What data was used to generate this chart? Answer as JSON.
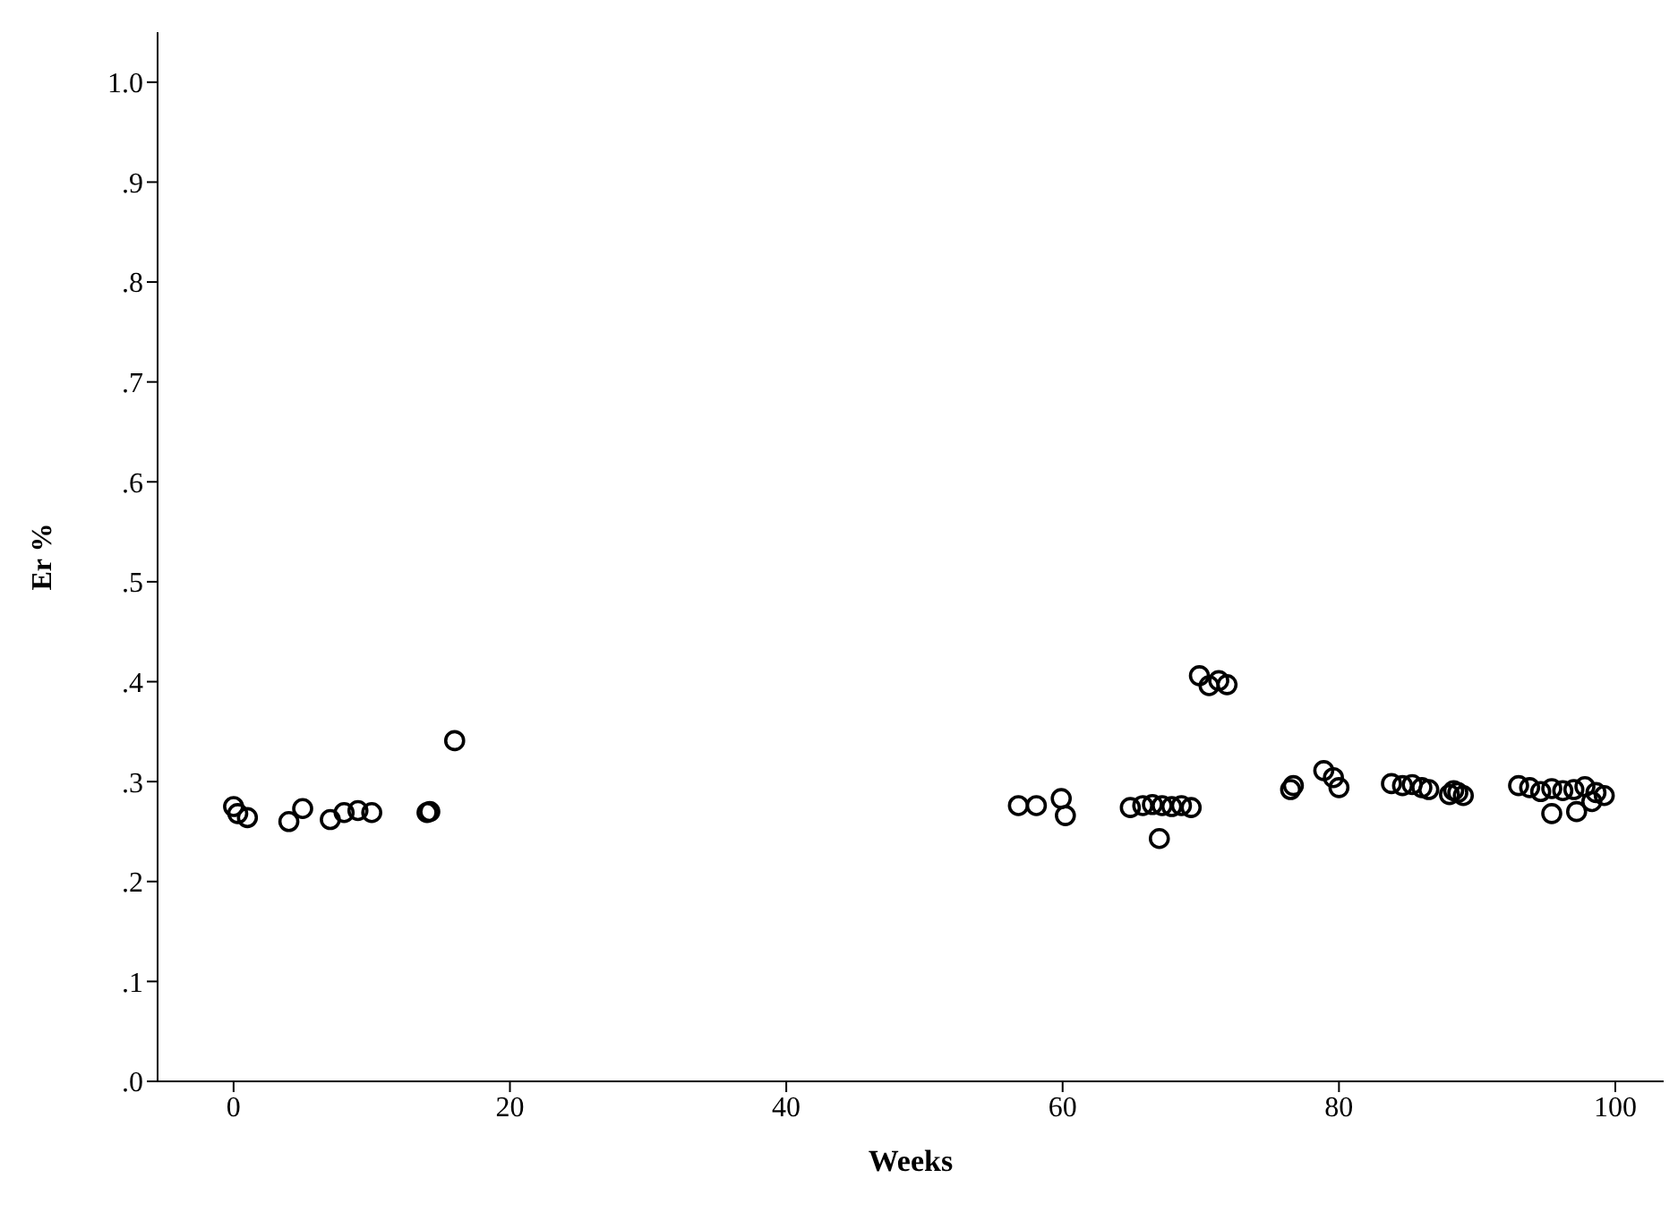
{
  "chart_data": {
    "type": "scatter",
    "xlabel": "Weeks",
    "ylabel": "Er %",
    "x": [
      0,
      0.3,
      1,
      4,
      5,
      7,
      8,
      9,
      10,
      14,
      14.2,
      16,
      56.8,
      58.1,
      59.9,
      60.2,
      64.9,
      65.8,
      66.5,
      67.2,
      67.9,
      68.6,
      69.3,
      67,
      69.9,
      70.6,
      71.3,
      71.9,
      76.5,
      76.7,
      78.9,
      79.6,
      80,
      83.8,
      84.6,
      85.3,
      86,
      86.5,
      88,
      88.3,
      88.6,
      89,
      93,
      93.8,
      94.6,
      95.4,
      96.2,
      97,
      97.8,
      98.6,
      99.2,
      95.4,
      97.2,
      98.3
    ],
    "values": [
      0.275,
      0.268,
      0.264,
      0.26,
      0.273,
      0.262,
      0.269,
      0.271,
      0.269,
      0.269,
      0.27,
      0.341,
      0.276,
      0.276,
      0.283,
      0.266,
      0.274,
      0.276,
      0.277,
      0.276,
      0.275,
      0.276,
      0.274,
      0.243,
      0.406,
      0.396,
      0.401,
      0.397,
      0.292,
      0.296,
      0.311,
      0.304,
      0.294,
      0.298,
      0.296,
      0.297,
      0.294,
      0.292,
      0.287,
      0.291,
      0.289,
      0.286,
      0.296,
      0.294,
      0.29,
      0.293,
      0.291,
      0.292,
      0.295,
      0.289,
      0.286,
      0.268,
      0.27,
      0.28
    ],
    "color": "#000000",
    "marker": "circle",
    "xlim": [
      -5.5,
      103.5
    ],
    "xticks": [
      0,
      20,
      40,
      60,
      80,
      100
    ],
    "ylim": [
      0,
      1.05
    ],
    "yticks": [
      {
        "value": 0,
        "label": ".0"
      },
      {
        "value": 0.1,
        "label": ".1"
      },
      {
        "value": 0.2,
        "label": ".2"
      },
      {
        "value": 0.3,
        "label": ".3"
      },
      {
        "value": 0.4,
        "label": ".4"
      },
      {
        "value": 0.5,
        "label": ".5"
      },
      {
        "value": 0.6,
        "label": ".6"
      },
      {
        "value": 0.7,
        "label": ".7"
      },
      {
        "value": 0.8,
        "label": ".8"
      },
      {
        "value": 0.9,
        "label": ".9"
      },
      {
        "value": 1,
        "label": "1.0"
      }
    ]
  }
}
